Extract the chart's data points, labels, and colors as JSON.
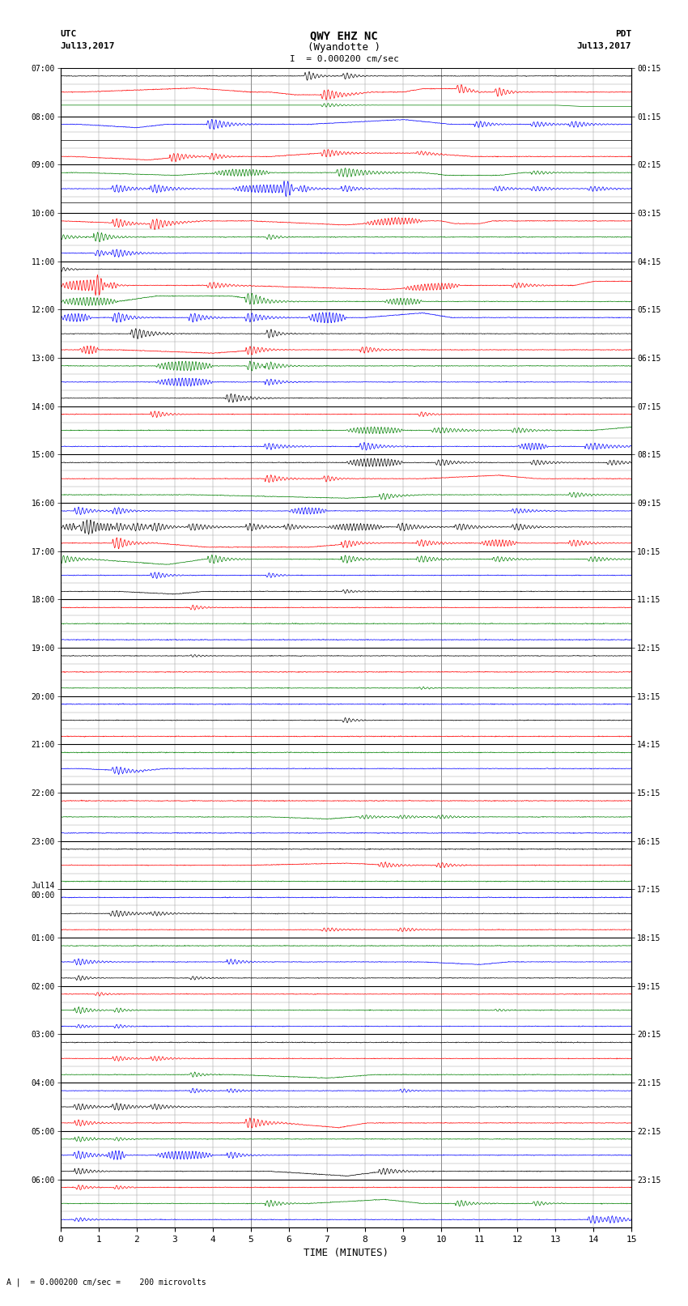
{
  "title_line1": "QWY EHZ NC",
  "title_line2": "(Wyandotte )",
  "scale_text": "I  = 0.000200 cm/sec",
  "left_label": "UTC",
  "left_date": "Jul13,2017",
  "right_label": "PDT",
  "right_date": "Jul13,2017",
  "xlabel": "TIME (MINUTES)",
  "footer_text": "A |  = 0.000200 cm/sec =    200 microvolts",
  "xmin": 0,
  "xmax": 15,
  "bg_color": "#ffffff",
  "grid_color": "#888888",
  "fig_width": 8.5,
  "fig_height": 16.13,
  "utc_hour_labels": [
    "07:00",
    "08:00",
    "09:00",
    "10:00",
    "11:00",
    "12:00",
    "13:00",
    "14:00",
    "15:00",
    "16:00",
    "17:00",
    "18:00",
    "19:00",
    "20:00",
    "21:00",
    "22:00",
    "23:00",
    "Jul14\n00:00",
    "01:00",
    "02:00",
    "03:00",
    "04:00",
    "05:00",
    "06:00"
  ],
  "pdt_hour_labels": [
    "00:15",
    "01:15",
    "02:15",
    "03:15",
    "04:15",
    "05:15",
    "06:15",
    "07:15",
    "08:15",
    "09:15",
    "10:15",
    "11:15",
    "12:15",
    "13:15",
    "14:15",
    "15:15",
    "16:15",
    "17:15",
    "18:15",
    "19:15",
    "20:15",
    "21:15",
    "22:15",
    "23:15"
  ]
}
